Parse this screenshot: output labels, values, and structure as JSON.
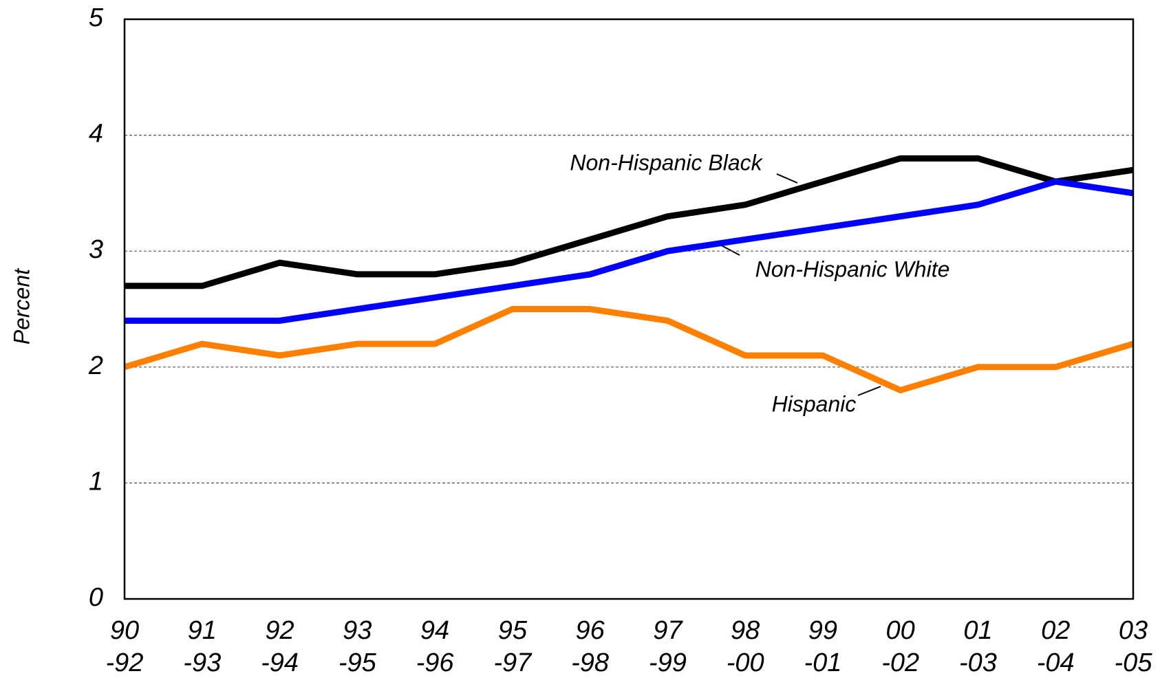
{
  "chart_data": {
    "type": "line",
    "y_label": "Percent",
    "categories": [
      [
        "90",
        "-92"
      ],
      [
        "91",
        "-93"
      ],
      [
        "92",
        "-94"
      ],
      [
        "93",
        "-95"
      ],
      [
        "94",
        "-96"
      ],
      [
        "95",
        "-97"
      ],
      [
        "96",
        "-98"
      ],
      [
        "97",
        "-99"
      ],
      [
        "98",
        "-00"
      ],
      [
        "99",
        "-01"
      ],
      [
        "00",
        "-02"
      ],
      [
        "01",
        "-03"
      ],
      [
        "02",
        "-04"
      ],
      [
        "03",
        "-05"
      ]
    ],
    "series": [
      {
        "name": "Non-Hispanic Black",
        "color": "#000000",
        "values": [
          2.7,
          2.7,
          2.9,
          2.8,
          2.8,
          2.9,
          3.1,
          3.3,
          3.4,
          3.6,
          3.8,
          3.8,
          3.6,
          3.7
        ]
      },
      {
        "name": "Non-Hispanic White",
        "color": "#0000ff",
        "values": [
          2.4,
          2.4,
          2.4,
          2.5,
          2.6,
          2.7,
          2.8,
          3.0,
          3.1,
          3.2,
          3.3,
          3.4,
          3.6,
          3.5
        ]
      },
      {
        "name": "Hispanic",
        "color": "#ff8000",
        "values": [
          2.0,
          2.2,
          2.1,
          2.2,
          2.2,
          2.5,
          2.5,
          2.4,
          2.1,
          2.1,
          1.8,
          2.0,
          2.0,
          2.2
        ]
      }
    ],
    "ylim": [
      0,
      5
    ],
    "yticks": [
      0,
      1,
      2,
      3,
      4,
      5
    ],
    "grid": true
  }
}
